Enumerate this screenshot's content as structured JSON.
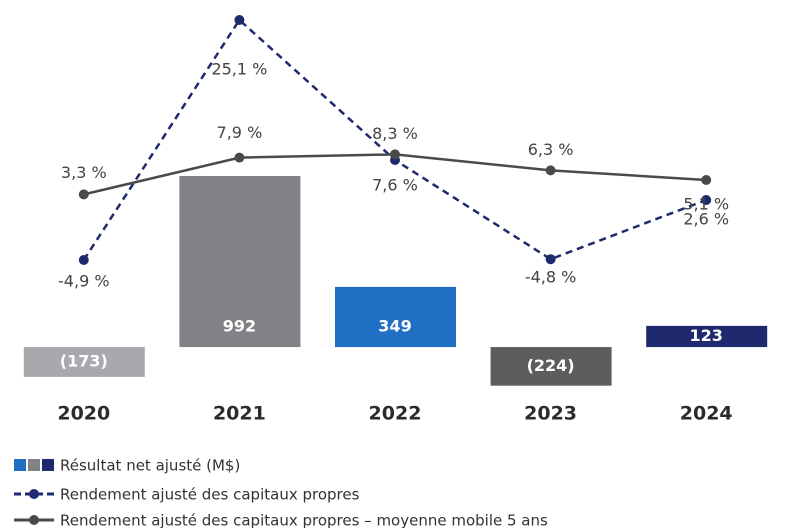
{
  "chart_data": {
    "type": "bar",
    "categories": [
      "2020",
      "2021",
      "2022",
      "2023",
      "2024"
    ],
    "ylim": [
      -307,
      2013
    ],
    "y2lim": [
      -22.4,
      27.6
    ],
    "series": [
      {
        "name": "Résultat net ajusté (M$)",
        "type": "bar",
        "colors": [
          "#a7a9ac",
          "#808285",
          "#1f6fc5",
          "#5d5d5f",
          "#1f2a6e"
        ],
        "values": [
          -173,
          992,
          349,
          -224,
          123
        ],
        "value_labels": [
          "(173)",
          "992",
          "349",
          "(224)",
          "123"
        ]
      },
      {
        "name": "Rendement ajusté des capitaux propres",
        "type": "line",
        "axis": "y2",
        "dashed": true,
        "color": "#1f2a6e",
        "values": [
          -4.9,
          25.1,
          7.6,
          -4.8,
          2.6
        ],
        "value_labels": [
          "-4,9 %",
          "25,1 %",
          "7,6 %",
          "-4,8 %",
          "2,6 %"
        ]
      },
      {
        "name": "Rendement ajusté des capitaux propres – moyenne mobile 5 ans",
        "type": "line",
        "axis": "y2",
        "dashed": false,
        "color": "#4a4a4a",
        "values": [
          3.3,
          7.9,
          8.3,
          6.3,
          5.1
        ],
        "value_labels": [
          "3,3 %",
          "7,9 %",
          "8,3 %",
          "6,3 %",
          "5,1 %"
        ]
      }
    ]
  }
}
